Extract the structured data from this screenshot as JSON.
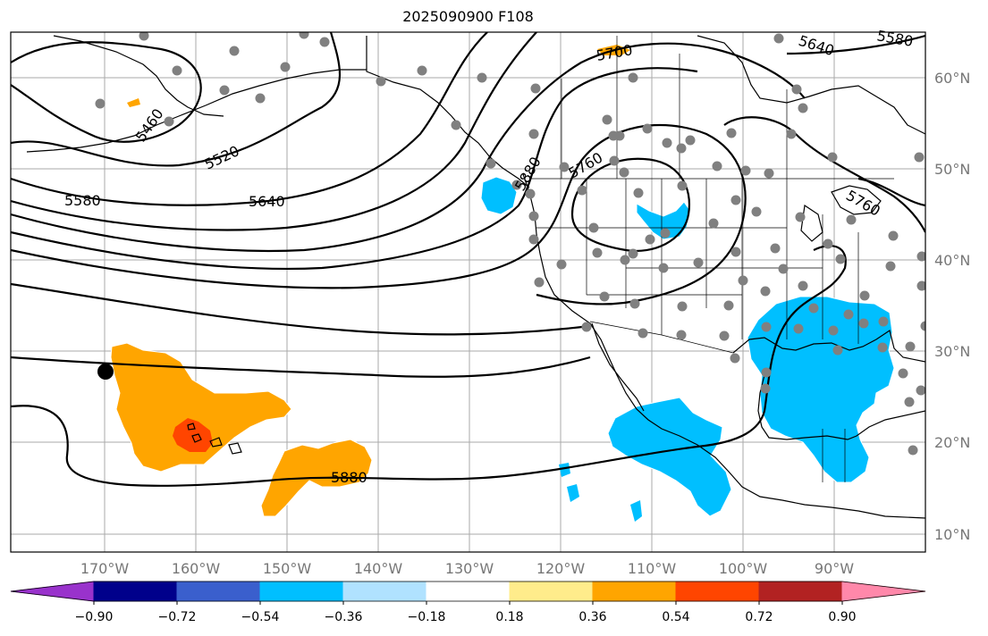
{
  "map": {
    "title": "2025090900 F108",
    "lat_labels": [
      "60°N",
      "50°N",
      "40°N",
      "30°N",
      "20°N",
      "10°N"
    ],
    "lon_labels": [
      "170°W",
      "160°W",
      "150°W",
      "140°W",
      "130°W",
      "120°W",
      "110°W",
      "100°W",
      "90°W"
    ],
    "contour_labels": [
      "5460",
      "5520",
      "5580",
      "5640",
      "5700",
      "5640",
      "5580",
      "5760",
      "5760",
      "5880",
      "5880"
    ],
    "colorbar": {
      "tick_labels": [
        "−0.90",
        "−0.72",
        "−0.54",
        "−0.36",
        "−0.18",
        "0.18",
        "0.36",
        "0.54",
        "0.72",
        "0.90"
      ],
      "colors": [
        "#9932cc",
        "#00008b",
        "#3a5fcd",
        "#00bfff",
        "#b0e2ff",
        "#ffffff",
        "#ffec8b",
        "#ffa500",
        "#ff4500",
        "#b22222",
        "#ff88aa"
      ]
    },
    "colors": {
      "positive_anomaly": "#ffa500",
      "strong_positive": "#ff4500",
      "negative_anomaly": "#00bfff",
      "station": "#808080",
      "grid": "#aaaaaa"
    }
  }
}
